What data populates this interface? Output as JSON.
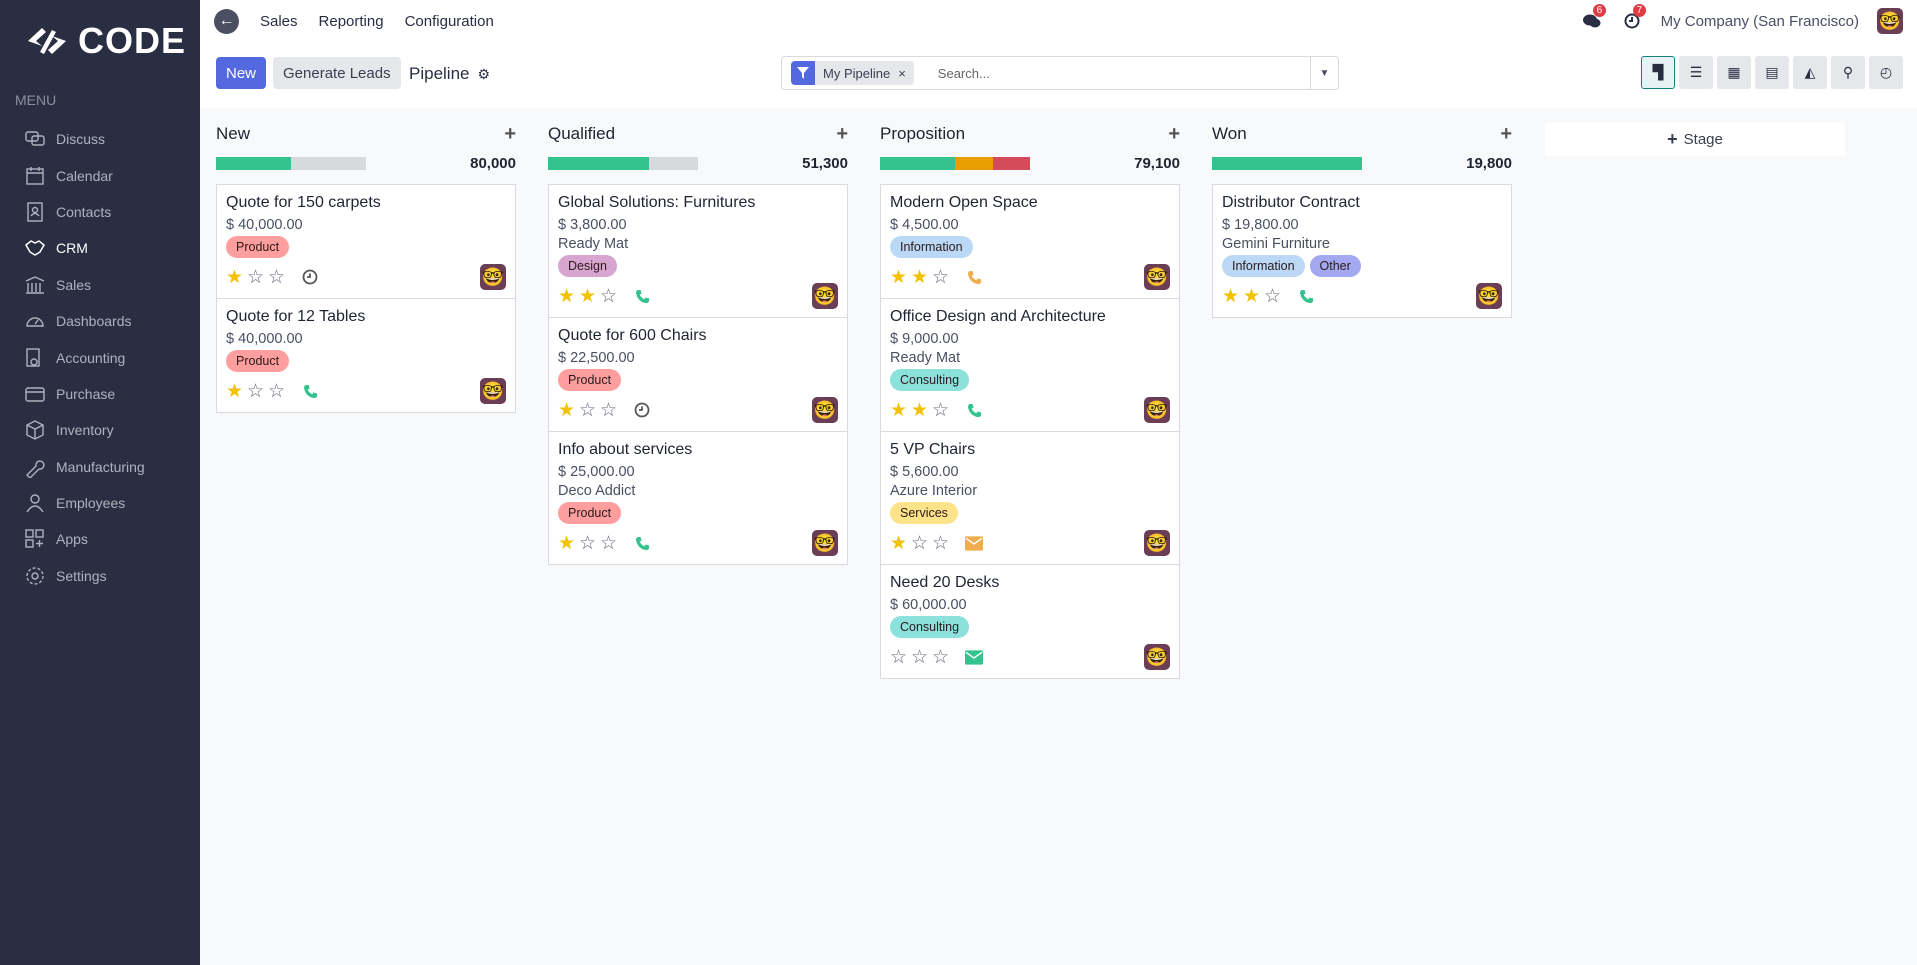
{
  "brand": {
    "name": "CODE"
  },
  "sidebar": {
    "menu_label": "MENU",
    "items": [
      {
        "label": "Discuss",
        "icon": "chat-icon"
      },
      {
        "label": "Calendar",
        "icon": "calendar-icon"
      },
      {
        "label": "Contacts",
        "icon": "contact-icon"
      },
      {
        "label": "CRM",
        "icon": "handshake-icon",
        "active": true
      },
      {
        "label": "Sales",
        "icon": "bank-icon"
      },
      {
        "label": "Dashboards",
        "icon": "gauge-icon"
      },
      {
        "label": "Accounting",
        "icon": "invoice-icon"
      },
      {
        "label": "Purchase",
        "icon": "card-icon"
      },
      {
        "label": "Inventory",
        "icon": "box-icon"
      },
      {
        "label": "Manufacturing",
        "icon": "wrench-icon"
      },
      {
        "label": "Employees",
        "icon": "person-icon"
      },
      {
        "label": "Apps",
        "icon": "apps-icon"
      },
      {
        "label": "Settings",
        "icon": "gear-icon"
      }
    ]
  },
  "topnav": {
    "links": [
      "Sales",
      "Reporting",
      "Configuration"
    ],
    "messages_count": "6",
    "activities_count": "7",
    "company": "My Company (San Francisco)"
  },
  "controls": {
    "new_label": "New",
    "generate_label": "Generate Leads",
    "breadcrumb": "Pipeline",
    "facet": "My Pipeline",
    "search_placeholder": "Search...",
    "views": [
      "kanban",
      "list",
      "calendar",
      "pivot",
      "graph",
      "map",
      "activity"
    ],
    "active_view": "kanban"
  },
  "colors": {
    "green": "#34c38f",
    "orange": "#e99d00",
    "red": "#d44c59",
    "grey": "#d8d9dd",
    "accent": "#5469e0"
  },
  "tag_colors": {
    "Product": "#ff9e9e",
    "Design": "#d8a5d0",
    "Information": "#bcd8f7",
    "Consulting": "#8be2dc",
    "Services": "#fde38a",
    "Other": "#a3a8f0"
  },
  "columns": [
    {
      "name": "New",
      "total": "80,000",
      "progress": {
        "green": 0.5,
        "orange": 0,
        "red": 0
      },
      "cards": [
        {
          "title": "Quote for 150 carpets",
          "amount": "$ 40,000.00",
          "tags": [
            "Product"
          ],
          "stars": 1,
          "activity": "clock"
        },
        {
          "title": "Quote for 12 Tables",
          "amount": "$ 40,000.00",
          "tags": [
            "Product"
          ],
          "stars": 1,
          "activity": "phone-green"
        }
      ]
    },
    {
      "name": "Qualified",
      "total": "51,300",
      "progress": {
        "green": 0.67,
        "orange": 0,
        "red": 0
      },
      "cards": [
        {
          "title": "Global Solutions: Furnitures",
          "amount": "$ 3,800.00",
          "company": "Ready Mat",
          "tags": [
            "Design"
          ],
          "stars": 2,
          "activity": "phone-green"
        },
        {
          "title": "Quote for 600 Chairs",
          "amount": "$ 22,500.00",
          "tags": [
            "Product"
          ],
          "stars": 1,
          "activity": "clock"
        },
        {
          "title": "Info about services",
          "amount": "$ 25,000.00",
          "company": "Deco Addict",
          "tags": [
            "Product"
          ],
          "stars": 1,
          "activity": "phone-green"
        }
      ]
    },
    {
      "name": "Proposition",
      "total": "79,100",
      "progress": {
        "green": 0.5,
        "orange": 0.25,
        "red": 0.25
      },
      "cards": [
        {
          "title": "Modern Open Space",
          "amount": "$ 4,500.00",
          "tags": [
            "Information"
          ],
          "stars": 2,
          "activity": "phone-orange"
        },
        {
          "title": "Office Design and Architecture",
          "amount": "$ 9,000.00",
          "company": "Ready Mat",
          "tags": [
            "Consulting"
          ],
          "stars": 2,
          "activity": "phone-green"
        },
        {
          "title": "5 VP Chairs",
          "amount": "$ 5,600.00",
          "company": "Azure Interior",
          "tags": [
            "Services"
          ],
          "stars": 1,
          "activity": "mail-orange"
        },
        {
          "title": "Need 20 Desks",
          "amount": "$ 60,000.00",
          "tags": [
            "Consulting"
          ],
          "stars": 0,
          "activity": "mail-green"
        }
      ]
    },
    {
      "name": "Won",
      "total": "19,800",
      "progress": {
        "green": 1,
        "orange": 0,
        "red": 0
      },
      "cards": [
        {
          "title": "Distributor Contract",
          "amount": "$ 19,800.00",
          "company": "Gemini Furniture",
          "tags": [
            "Information",
            "Other"
          ],
          "stars": 2,
          "activity": "phone-green"
        }
      ]
    }
  ],
  "add_stage_label": "Stage"
}
